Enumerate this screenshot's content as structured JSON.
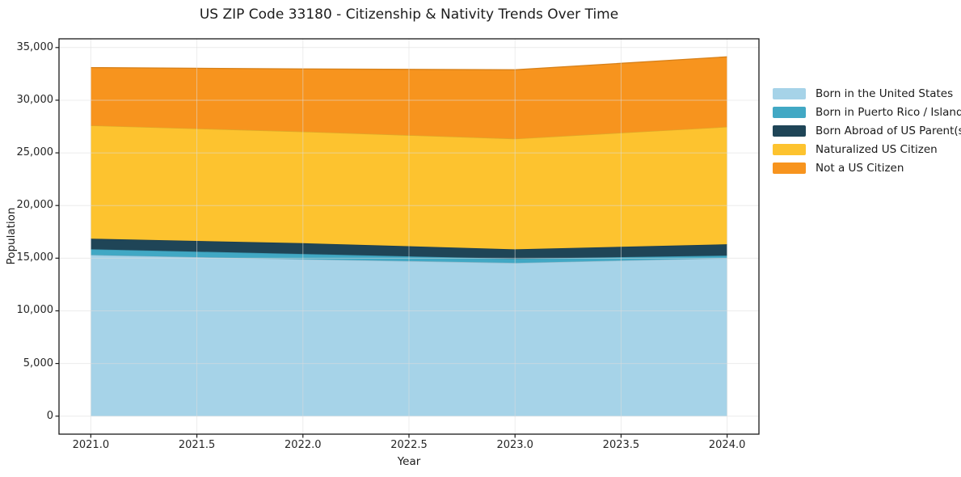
{
  "title": "US ZIP Code 33180 - Citizenship & Nativity Trends Over Time",
  "chart_data": {
    "type": "area",
    "stacked": true,
    "title": "US ZIP Code 33180 - Citizenship & Nativity Trends Over Time",
    "xlabel": "Year",
    "ylabel": "Population",
    "x": [
      2021,
      2022,
      2023,
      2024
    ],
    "series": [
      {
        "name": "Born in the United States",
        "color": "#a6d3e8",
        "values": [
          15300,
          14900,
          14550,
          15000
        ]
      },
      {
        "name": "Born in Puerto Rico / Islands",
        "color": "#41a8c4",
        "values": [
          550,
          500,
          400,
          250
        ]
      },
      {
        "name": "Born Abroad of US Parent(s)",
        "color": "#1f4557",
        "values": [
          1000,
          1020,
          890,
          1070
        ]
      },
      {
        "name": "Naturalized US Citizen",
        "color": "#fdc32f",
        "values": [
          10750,
          10600,
          10500,
          11150
        ]
      },
      {
        "name": "Not a US Citizen",
        "color": "#f7941e",
        "values": [
          5500,
          5950,
          6550,
          6650
        ]
      }
    ],
    "totals": [
      33100,
      32970,
      32890,
      34120
    ],
    "xlim": [
      2020.85,
      2024.15
    ],
    "ylim": [
      -1710,
      35830
    ],
    "xticks": [
      2021.0,
      2021.5,
      2022.0,
      2022.5,
      2023.0,
      2023.5,
      2024.0
    ],
    "xtick_labels": [
      "2021.0",
      "2021.5",
      "2022.0",
      "2022.5",
      "2023.0",
      "2023.5",
      "2024.0"
    ],
    "yticks": [
      0,
      5000,
      10000,
      15000,
      20000,
      25000,
      30000,
      35000
    ],
    "ytick_labels": [
      "0",
      "5,000",
      "10,000",
      "15,000",
      "20,000",
      "25,000",
      "30,000",
      "35,000"
    ],
    "grid": true,
    "legend_position": "right-outside",
    "grid_color": "#dcdcdc",
    "spine_color": "#1a1a1a",
    "background_color": "#ffffff"
  }
}
